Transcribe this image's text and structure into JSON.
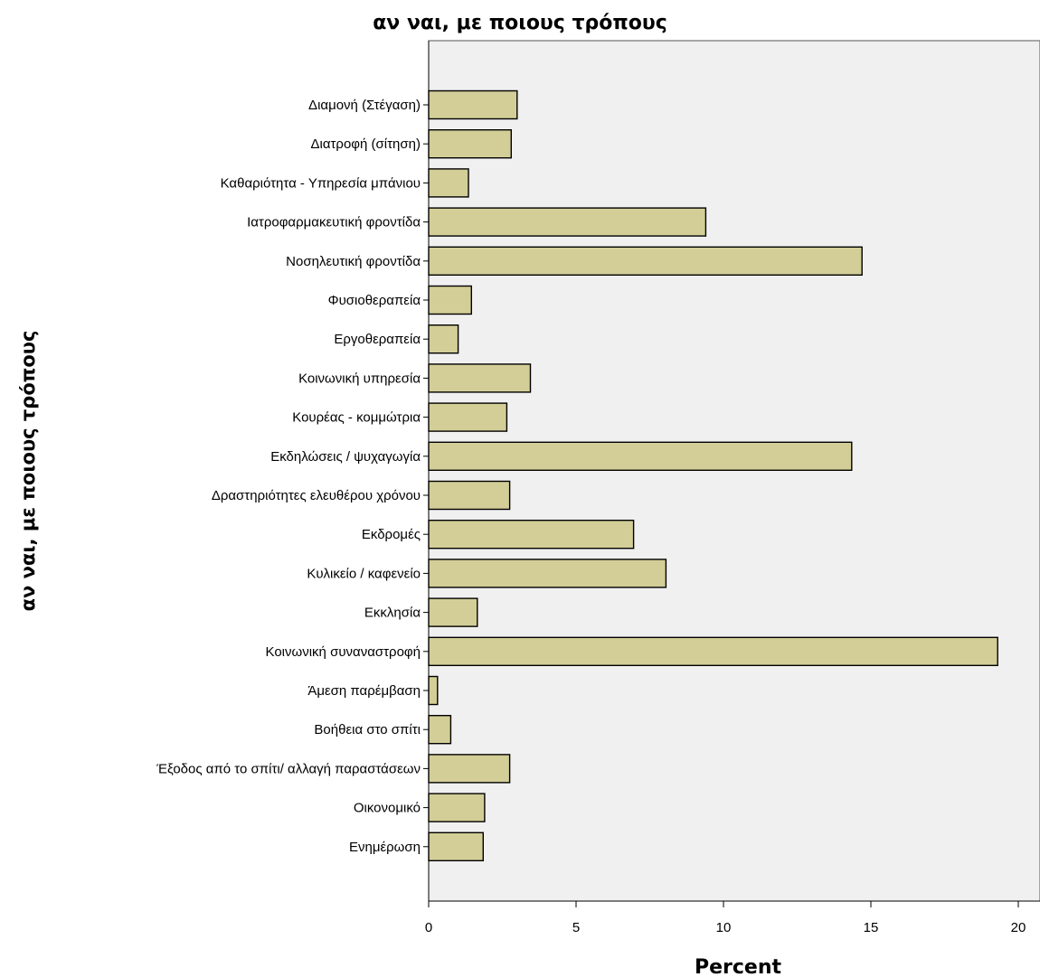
{
  "chart_data": {
    "type": "bar",
    "orientation": "horizontal",
    "title": "αν ναι, με ποιους τρόπους",
    "xlabel": "Percent",
    "ylabel": "αν ναι, με ποιους τρόπους",
    "xlim": [
      0,
      21
    ],
    "xticks": [
      0,
      5,
      10,
      15,
      20
    ],
    "grid": false,
    "colors": {
      "bar": "#d3ce97",
      "plot_background": "#f0f0f0"
    },
    "categories": [
      "Διαμονή (Στέγαση)",
      "Διατροφή (σίτηση)",
      "Καθαριότητα - Υπηρεσία μπάνιου",
      "Ιατροφαρμακευτική φροντίδα",
      "Νοσηλευτική φροντίδα",
      "Φυσιοθεραπεία",
      "Εργοθεραπεία",
      "Κοινωνική υπηρεσία",
      "Κουρέας - κομμώτρια",
      "Εκδηλώσεις / ψυχαγωγία",
      "Δραστηριότητες ελευθέρου χρόνου",
      "Εκδρομές",
      "Κυλικείο / καφενείο",
      "Εκκλησία",
      "Κοινωνική συναναστροφή",
      "Άμεση παρέμβαση",
      "Βοήθεια στο σπίτι",
      "Έξοδος από το σπίτι/ αλλαγή παραστάσεων",
      "Οικονομικό",
      "Ενημέρωση"
    ],
    "values": [
      3.0,
      2.8,
      1.35,
      9.4,
      14.7,
      1.45,
      1.0,
      3.45,
      2.65,
      14.35,
      2.75,
      6.95,
      8.05,
      1.65,
      19.3,
      0.3,
      0.75,
      2.75,
      1.9,
      1.85
    ]
  }
}
